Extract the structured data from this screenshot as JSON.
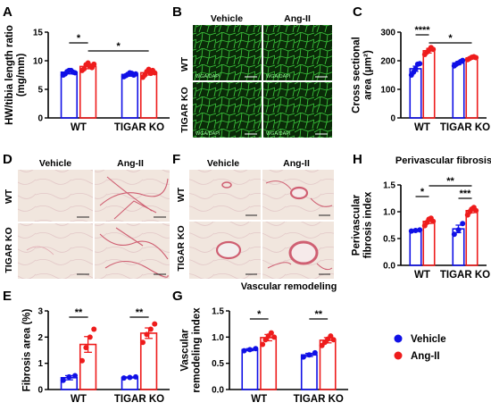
{
  "colors": {
    "vehicle": "#1010e6",
    "angii": "#ee1c1c",
    "wga_bg": "#0a2a08",
    "wga_line": "#39c23a",
    "psr_bg": "#f1e6de",
    "psr_line": "#cf5f72"
  },
  "panel_labels": [
    "A",
    "B",
    "C",
    "D",
    "E",
    "F",
    "G",
    "H"
  ],
  "micro": {
    "vehicle_label": "Vehicle",
    "angii_label": "Ang-II",
    "wt_label": "WT",
    "ko_label": "TIGAR KO",
    "stain_wga": "WGA",
    "stain_dapi": "DAPI"
  },
  "legend": {
    "vehicle": "Vehicle",
    "angii": "Ang-II"
  },
  "chart_data": [
    {
      "id": "A",
      "type": "bar",
      "title": "",
      "categories": [
        "WT",
        "TIGAR KO"
      ],
      "ylabel": "HW/tibia length ratio\n(mg/mm)",
      "ylim": [
        0,
        15
      ],
      "yticks": [
        0,
        5,
        10,
        15
      ],
      "series": [
        {
          "name": "Vehicle",
          "values": [
            8.0,
            7.6
          ],
          "errors": [
            0.3,
            0.3
          ],
          "points": [
            [
              7.5,
              7.7,
              8.1,
              8.3,
              8.3,
              8.0,
              7.9
            ],
            [
              7.2,
              7.4,
              7.6,
              7.9,
              7.8,
              7.5,
              7.7
            ]
          ]
        },
        {
          "name": "Ang-II",
          "values": [
            9.0,
            7.9
          ],
          "errors": [
            0.4,
            0.4
          ],
          "points": [
            [
              8.3,
              8.6,
              9.3,
              9.6,
              9.1,
              8.8,
              9.4
            ],
            [
              7.1,
              7.5,
              8.1,
              8.5,
              7.8,
              8.3,
              7.9
            ]
          ]
        }
      ],
      "annotations": [
        {
          "pair": [
            "WT-Vehicle",
            "WT-Ang-II"
          ],
          "text": "*"
        },
        {
          "pair": [
            "WT-Ang-II",
            "TIGAR KO-Ang-II"
          ],
          "text": "*"
        }
      ]
    },
    {
      "id": "C",
      "type": "bar",
      "title": "",
      "categories": [
        "WT",
        "TIGAR KO"
      ],
      "ylabel": "Cross sectional\narea (μm²)",
      "ylim": [
        0,
        300
      ],
      "yticks": [
        0,
        100,
        200,
        300
      ],
      "series": [
        {
          "name": "Vehicle",
          "values": [
            172,
            192
          ],
          "errors": [
            9,
            6
          ],
          "points": [
            [
              150,
              160,
              172,
              188,
              190
            ],
            [
              182,
              188,
              192,
              197,
              201
            ]
          ]
        },
        {
          "name": "Ang-II",
          "values": [
            235,
            210
          ],
          "errors": [
            8,
            4
          ],
          "points": [
            [
              222,
              230,
              238,
              246,
              240
            ],
            [
              204,
              208,
              212,
              214,
              211
            ]
          ]
        }
      ],
      "annotations": [
        {
          "pair": [
            "WT-Vehicle",
            "WT-Ang-II"
          ],
          "text": "****"
        },
        {
          "pair": [
            "WT-Ang-II",
            "TIGAR KO-Ang-II"
          ],
          "text": "*"
        }
      ]
    },
    {
      "id": "E",
      "type": "bar",
      "title": "",
      "categories": [
        "WT",
        "TIGAR KO"
      ],
      "ylabel": "Fibrosis area (%)",
      "ylim": [
        0,
        3
      ],
      "yticks": [
        0,
        1,
        2,
        3
      ],
      "series": [
        {
          "name": "Vehicle",
          "values": [
            0.45,
            0.46
          ],
          "errors": [
            0.08,
            0.02
          ],
          "points": [
            [
              0.35,
              0.48,
              0.53
            ],
            [
              0.44,
              0.46,
              0.48
            ]
          ]
        },
        {
          "name": "Ang-II",
          "values": [
            1.72,
            2.15
          ],
          "errors": [
            0.3,
            0.2
          ],
          "points": [
            [
              1.1,
              1.6,
              2.0,
              2.3
            ],
            [
              1.8,
              2.1,
              2.3,
              2.5
            ]
          ]
        }
      ],
      "annotations": [
        {
          "pair": [
            "WT-Vehicle",
            "WT-Ang-II"
          ],
          "text": "**"
        },
        {
          "pair": [
            "TIGAR KO-Vehicle",
            "TIGAR KO-Ang-II"
          ],
          "text": "**"
        }
      ]
    },
    {
      "id": "G",
      "type": "bar",
      "title": "Vascular remodeling",
      "categories": [
        "WT",
        "TIGAR KO"
      ],
      "ylabel": "Vascular\nremodeling index",
      "ylim": [
        0,
        1.5
      ],
      "yticks": [
        0.0,
        0.5,
        1.0,
        1.5
      ],
      "series": [
        {
          "name": "Vehicle",
          "values": [
            0.76,
            0.66
          ],
          "errors": [
            0.02,
            0.03
          ],
          "points": [
            [
              0.74,
              0.76,
              0.78
            ],
            [
              0.62,
              0.66,
              0.7
            ]
          ]
        },
        {
          "name": "Ang-II",
          "values": [
            0.99,
            0.94
          ],
          "errors": [
            0.06,
            0.05
          ],
          "points": [
            [
              0.86,
              0.95,
              1.02,
              1.08,
              1.0
            ],
            [
              0.84,
              0.9,
              0.96,
              1.02,
              0.95
            ]
          ]
        }
      ],
      "annotations": [
        {
          "pair": [
            "WT-Vehicle",
            "WT-Ang-II"
          ],
          "text": "*"
        },
        {
          "pair": [
            "TIGAR KO-Vehicle",
            "TIGAR KO-Ang-II"
          ],
          "text": "**"
        }
      ]
    },
    {
      "id": "H",
      "type": "bar",
      "title": "Perivascular fibrosis",
      "categories": [
        "WT",
        "TIGAR KO"
      ],
      "ylabel": "Perivascular\nfibrosis index",
      "ylim": [
        0,
        1.5
      ],
      "yticks": [
        0.0,
        0.5,
        1.0,
        1.5
      ],
      "series": [
        {
          "name": "Vehicle",
          "values": [
            0.65,
            0.68
          ],
          "errors": [
            0.01,
            0.07
          ],
          "points": [
            [
              0.64,
              0.65,
              0.66
            ],
            [
              0.58,
              0.66,
              0.78
            ]
          ]
        },
        {
          "name": "Ang-II",
          "values": [
            0.82,
            1.02
          ],
          "errors": [
            0.04,
            0.04
          ],
          "points": [
            [
              0.74,
              0.8,
              0.86,
              0.88,
              0.82
            ],
            [
              0.94,
              1.0,
              1.05,
              1.08,
              1.02
            ]
          ]
        }
      ],
      "annotations": [
        {
          "pair": [
            "WT-Vehicle",
            "WT-Ang-II"
          ],
          "text": "*"
        },
        {
          "pair": [
            "TIGAR KO-Vehicle",
            "TIGAR KO-Ang-II"
          ],
          "text": "***"
        },
        {
          "pair": [
            "WT-Ang-II",
            "TIGAR KO-Ang-II"
          ],
          "text": "**"
        }
      ]
    }
  ]
}
